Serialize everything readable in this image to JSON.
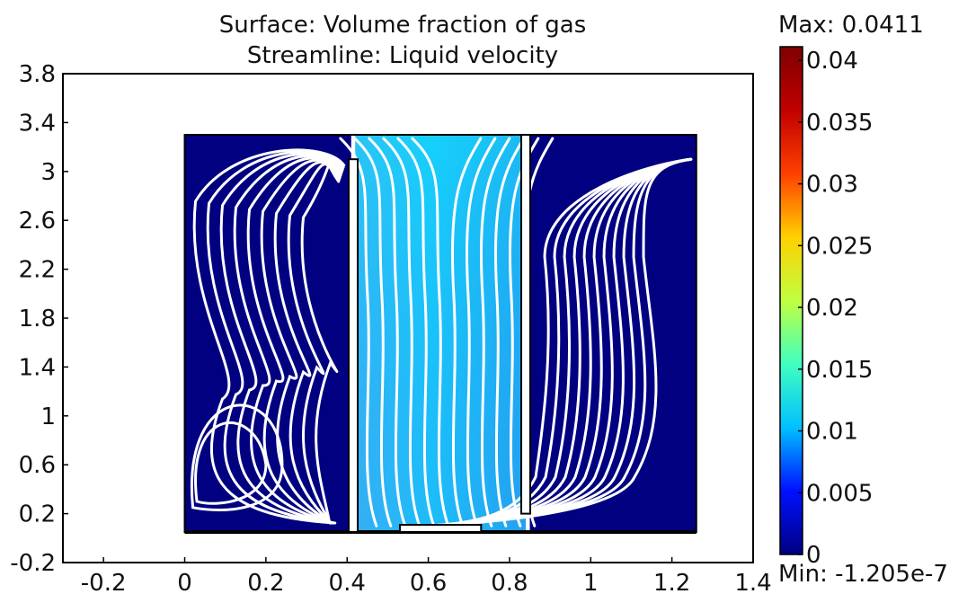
{
  "chart_data": {
    "type": "heatmap",
    "title": "Surface: Volume fraction of gas",
    "subtitle": "Streamline: Liquid velocity",
    "xlabel": "",
    "ylabel": "",
    "xlim": [
      -0.3,
      1.4
    ],
    "ylim": [
      -0.2,
      3.8
    ],
    "x_ticks": [
      "-0.2",
      "0",
      "0.2",
      "0.4",
      "0.6",
      "0.8",
      "1",
      "1.2",
      "1.4"
    ],
    "y_ticks": [
      "-0.2",
      "0.2",
      "0.6",
      "1",
      "1.4",
      "1.8",
      "2.2",
      "2.6",
      "3",
      "3.4",
      "3.8"
    ],
    "colorbar": {
      "max_label": "Max: 0.0411",
      "min_label": "Min: -1.205e-7",
      "max": 0.0411,
      "min": 0,
      "ticks": [
        "0",
        "0.005",
        "0.01",
        "0.015",
        "0.02",
        "0.025",
        "0.03",
        "0.035",
        "0.04"
      ],
      "colormap": [
        "#000080",
        "#0010ff",
        "#00c0ff",
        "#40ffc0",
        "#c0ff40",
        "#ffd000",
        "#ff4000",
        "#c00000",
        "#800000"
      ]
    },
    "regions": [
      {
        "x": [
          0,
          0.41
        ],
        "y": [
          0.05,
          3.3
        ],
        "value": 0.0
      },
      {
        "x": [
          0.42,
          0.84
        ],
        "y": [
          0.05,
          3.3
        ],
        "value": 0.013
      },
      {
        "x": [
          0.85,
          1.26
        ],
        "y": [
          0.05,
          3.3
        ],
        "value": 0.0
      }
    ],
    "walls": [
      {
        "x": 0.415,
        "y": [
          0.05,
          3.1
        ]
      },
      {
        "x": 0.84,
        "y": [
          0.2,
          3.3
        ]
      }
    ],
    "colors": {
      "background_liquid": "#000080",
      "riser": "#22b4f0",
      "streamline": "#ffffff"
    }
  }
}
